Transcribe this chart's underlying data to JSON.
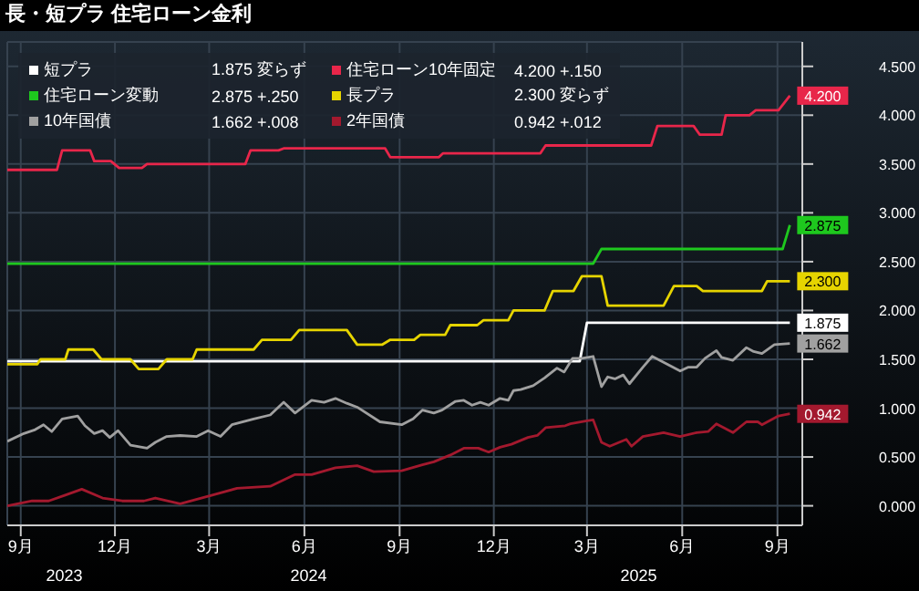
{
  "chart_data": {
    "type": "line",
    "title": "長・短プラ 住宅ローン金利",
    "xlim": [
      "2023-08-19",
      "2025-09-25"
    ],
    "xticks": [
      {
        "value": "2023-09-01",
        "label": "9月"
      },
      {
        "value": "2023-12-01",
        "label": "12月"
      },
      {
        "value": "2024-03-01",
        "label": "3月"
      },
      {
        "value": "2024-06-01",
        "label": "6月"
      },
      {
        "value": "2024-09-01",
        "label": "9月"
      },
      {
        "value": "2024-12-01",
        "label": "12月"
      },
      {
        "value": "2025-03-01",
        "label": "3月"
      },
      {
        "value": "2025-06-01",
        "label": "6月"
      },
      {
        "value": "2025-09-01",
        "label": "9月"
      }
    ],
    "ylim": [
      -0.2,
      4.75
    ],
    "yticks": [
      {
        "value": 0,
        "label": "0.000"
      },
      {
        "value": 0.5,
        "label": "0.500"
      },
      {
        "value": 1,
        "label": "1.000"
      },
      {
        "value": 1.5,
        "label": "1.500"
      },
      {
        "value": 2,
        "label": "2.000"
      },
      {
        "value": 2.5,
        "label": "2.500"
      },
      {
        "value": 3,
        "label": "3.000"
      },
      {
        "value": 3.5,
        "label": "3.500"
      },
      {
        "value": 4,
        "label": "4.000"
      },
      {
        "value": 4.5,
        "label": "4.500"
      }
    ],
    "grid": true,
    "legend": "top left",
    "series": [
      {
        "name": "短プラ",
        "color": "#ffffff",
        "x": [
          "2023-08-19",
          "2025-02-22",
          "2025-03-01",
          "2025-09-13"
        ],
        "values": [
          1.48,
          1.48,
          1.875,
          1.875
        ]
      },
      {
        "name": "住宅ローン10年固定",
        "color": "#e8264a",
        "x": [
          "2023-08-19",
          "2023-10-06",
          "2023-10-11",
          "2023-11-07",
          "2023-11-11",
          "2023-11-27",
          "2023-12-05",
          "2023-12-27",
          "2024-01-01",
          "2024-04-05",
          "2024-04-10",
          "2024-05-07",
          "2024-05-12",
          "2024-08-18",
          "2024-08-23",
          "2024-10-09",
          "2024-10-13",
          "2025-01-15",
          "2025-01-20",
          "2025-05-02",
          "2025-05-08",
          "2025-06-12",
          "2025-06-18",
          "2025-07-09",
          "2025-07-13",
          "2025-08-05",
          "2025-08-11",
          "2025-09-02",
          "2025-09-13"
        ],
        "values": [
          3.44,
          3.44,
          3.64,
          3.64,
          3.53,
          3.53,
          3.46,
          3.46,
          3.5,
          3.5,
          3.64,
          3.64,
          3.66,
          3.66,
          3.57,
          3.57,
          3.61,
          3.61,
          3.69,
          3.69,
          3.89,
          3.89,
          3.8,
          3.8,
          4.0,
          4.0,
          4.05,
          4.05,
          4.2
        ]
      },
      {
        "name": "住宅ローン変動",
        "color": "#1ec81e",
        "x": [
          "2023-08-19",
          "2025-03-07",
          "2025-03-15",
          "2025-09-06",
          "2025-09-13"
        ],
        "values": [
          2.48,
          2.48,
          2.63,
          2.63,
          2.875
        ]
      },
      {
        "name": "長プラ",
        "color": "#e6d400",
        "x": [
          "2023-08-19",
          "2023-09-17",
          "2023-09-20",
          "2023-10-14",
          "2023-10-17",
          "2023-11-10",
          "2023-11-18",
          "2023-12-16",
          "2023-12-24",
          "2024-01-12",
          "2024-01-20",
          "2024-02-14",
          "2024-02-18",
          "2024-04-13",
          "2024-04-21",
          "2024-05-19",
          "2024-05-27",
          "2024-07-12",
          "2024-07-22",
          "2024-08-15",
          "2024-08-23",
          "2024-09-15",
          "2024-09-21",
          "2024-10-15",
          "2024-10-20",
          "2024-11-15",
          "2024-11-21",
          "2024-12-15",
          "2024-12-20",
          "2025-01-19",
          "2025-01-27",
          "2025-02-16",
          "2025-02-24",
          "2025-03-15",
          "2025-03-21",
          "2025-05-14",
          "2025-05-24",
          "2025-06-15",
          "2025-06-21",
          "2025-08-17",
          "2025-08-22",
          "2025-09-13"
        ],
        "values": [
          1.45,
          1.45,
          1.5,
          1.5,
          1.6,
          1.6,
          1.5,
          1.5,
          1.4,
          1.4,
          1.5,
          1.5,
          1.6,
          1.6,
          1.7,
          1.7,
          1.8,
          1.8,
          1.65,
          1.65,
          1.7,
          1.7,
          1.75,
          1.75,
          1.85,
          1.85,
          1.9,
          1.9,
          2.0,
          2.0,
          2.2,
          2.2,
          2.35,
          2.35,
          2.05,
          2.05,
          2.25,
          2.25,
          2.2,
          2.2,
          2.3,
          2.3
        ]
      },
      {
        "name": "10年国債",
        "color": "#a0a0a0",
        "x": [
          "2023-08-19",
          "2023-09-04",
          "2023-09-15",
          "2023-09-23",
          "2023-10-01",
          "2023-10-11",
          "2023-10-26",
          "2023-11-02",
          "2023-11-11",
          "2023-11-19",
          "2023-11-26",
          "2023-12-04",
          "2023-12-16",
          "2024-01-01",
          "2024-01-09",
          "2024-01-20",
          "2024-02-02",
          "2024-02-18",
          "2024-02-29",
          "2024-03-12",
          "2024-03-23",
          "2024-04-13",
          "2024-04-29",
          "2024-05-12",
          "2024-05-23",
          "2024-06-08",
          "2024-06-20",
          "2024-07-01",
          "2024-07-12",
          "2024-07-22",
          "2024-08-13",
          "2024-09-03",
          "2024-09-14",
          "2024-09-23",
          "2024-10-04",
          "2024-10-12",
          "2024-10-25",
          "2024-11-02",
          "2024-11-10",
          "2024-11-18",
          "2024-11-26",
          "2024-12-07",
          "2024-12-15",
          "2024-12-20",
          "2024-12-27",
          "2025-01-08",
          "2025-01-19",
          "2025-01-31",
          "2025-02-07",
          "2025-02-15",
          "2025-02-24",
          "2025-03-07",
          "2025-03-15",
          "2025-03-21",
          "2025-03-28",
          "2025-04-05",
          "2025-04-11",
          "2025-04-24",
          "2025-05-03",
          "2025-05-14",
          "2025-05-30",
          "2025-06-07",
          "2025-06-15",
          "2025-06-23",
          "2025-07-04",
          "2025-07-09",
          "2025-07-20",
          "2025-08-02",
          "2025-08-09",
          "2025-08-17",
          "2025-08-29",
          "2025-09-13"
        ],
        "values": [
          0.66,
          0.74,
          0.78,
          0.83,
          0.76,
          0.89,
          0.92,
          0.82,
          0.74,
          0.77,
          0.7,
          0.77,
          0.62,
          0.59,
          0.65,
          0.71,
          0.72,
          0.71,
          0.77,
          0.71,
          0.83,
          0.89,
          0.93,
          1.06,
          0.95,
          1.08,
          1.06,
          1.1,
          1.05,
          1.01,
          0.86,
          0.83,
          0.89,
          0.98,
          0.95,
          0.98,
          1.07,
          1.08,
          1.03,
          1.06,
          1.03,
          1.1,
          1.08,
          1.18,
          1.19,
          1.23,
          1.31,
          1.41,
          1.37,
          1.51,
          1.51,
          1.53,
          1.22,
          1.32,
          1.3,
          1.34,
          1.25,
          1.42,
          1.53,
          1.47,
          1.38,
          1.42,
          1.42,
          1.51,
          1.59,
          1.52,
          1.49,
          1.62,
          1.58,
          1.56,
          1.65,
          1.662
        ]
      },
      {
        "name": "2年国債",
        "color": "#a3192e",
        "x": [
          "2023-08-19",
          "2023-09-12",
          "2023-09-28",
          "2023-10-14",
          "2023-10-30",
          "2023-11-19",
          "2023-12-08",
          "2023-12-29",
          "2024-01-09",
          "2024-02-02",
          "2024-03-04",
          "2024-03-28",
          "2024-04-29",
          "2024-05-23",
          "2024-06-08",
          "2024-07-01",
          "2024-07-22",
          "2024-08-07",
          "2024-09-03",
          "2024-09-23",
          "2024-10-04",
          "2024-10-20",
          "2024-11-02",
          "2024-11-16",
          "2024-11-26",
          "2024-12-07",
          "2024-12-18",
          "2025-01-03",
          "2025-01-12",
          "2025-01-20",
          "2025-02-08",
          "2025-02-13",
          "2025-03-01",
          "2025-03-07",
          "2025-03-15",
          "2025-03-23",
          "2025-04-08",
          "2025-04-13",
          "2025-04-24",
          "2025-05-14",
          "2025-05-30",
          "2025-06-15",
          "2025-06-26",
          "2025-07-04",
          "2025-07-20",
          "2025-08-02",
          "2025-08-13",
          "2025-08-17",
          "2025-09-02",
          "2025-09-13"
        ],
        "values": [
          0.0,
          0.05,
          0.05,
          0.11,
          0.17,
          0.08,
          0.05,
          0.05,
          0.08,
          0.02,
          0.11,
          0.18,
          0.2,
          0.32,
          0.32,
          0.39,
          0.41,
          0.35,
          0.36,
          0.42,
          0.45,
          0.52,
          0.59,
          0.59,
          0.55,
          0.6,
          0.63,
          0.7,
          0.72,
          0.8,
          0.82,
          0.84,
          0.87,
          0.88,
          0.65,
          0.61,
          0.68,
          0.61,
          0.71,
          0.75,
          0.71,
          0.75,
          0.76,
          0.84,
          0.75,
          0.86,
          0.86,
          0.83,
          0.92,
          0.942
        ]
      }
    ],
    "annotations": [
      "1.875 変らず",
      "4.200 +.150",
      "2.875 +.250",
      "2.300 変らず",
      "1.662 +.008",
      "0.942 +.012",
      {
        "text": "1.875",
        "x": "2025-09-13",
        "y": 1.875
      },
      {
        "text": "4.200",
        "x": "2025-09-13",
        "y": 4.2
      },
      {
        "text": "2.875",
        "x": "2025-09-13",
        "y": 2.875
      },
      {
        "text": "2.300",
        "x": "2025-09-13",
        "y": 2.3
      },
      {
        "text": "1.662",
        "x": "2025-09-13",
        "y": 1.662
      },
      {
        "text": "0.942",
        "x": "2025-09-13",
        "y": 0.942
      }
    ],
    "x2lim": [
      "2023-08-19",
      "2025-09-25"
    ],
    "x2ticks": [
      {
        "value": "2023-10-13",
        "label": "2023"
      },
      {
        "value": "2024-06-05",
        "label": "2024"
      },
      {
        "value": "2025-04-20",
        "label": "2025"
      }
    ]
  }
}
